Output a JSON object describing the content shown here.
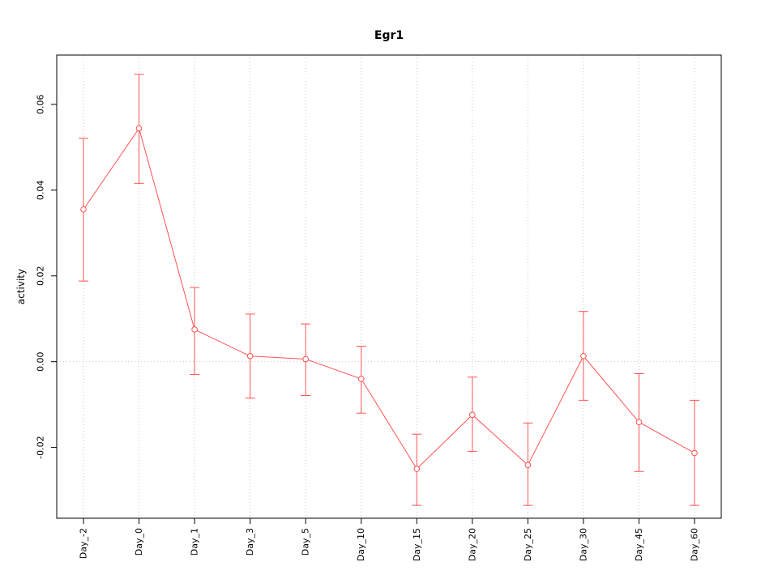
{
  "chart_data": {
    "type": "line",
    "title": "Egr1",
    "xlabel": "",
    "ylabel": "activity",
    "categories": [
      "Day_-2",
      "Day_0",
      "Day_1",
      "Day_3",
      "Day_5",
      "Day_10",
      "Day_15",
      "Day_20",
      "Day_25",
      "Day_30",
      "Day_45",
      "Day_60"
    ],
    "values": [
      0.0355,
      0.0544,
      0.0075,
      0.0013,
      0.0006,
      -0.004,
      -0.025,
      -0.0124,
      -0.0241,
      0.0013,
      -0.0141,
      -0.0213
    ],
    "error_high": [
      0.0521,
      0.067,
      0.0173,
      0.0111,
      0.0088,
      0.0036,
      -0.0169,
      -0.0036,
      -0.0143,
      0.0117,
      -0.0028,
      -0.009
    ],
    "error_low": [
      0.0188,
      0.0416,
      -0.003,
      -0.0085,
      -0.0079,
      -0.012,
      -0.0335,
      -0.0209,
      -0.0335,
      -0.009,
      -0.0256,
      -0.0335
    ],
    "ylim": [
      -0.0365,
      0.0715
    ],
    "yticks": [
      -0.02,
      0,
      0.02,
      0.04,
      0.06
    ],
    "grid": true,
    "series_color": "#ff5252",
    "grid_color": "#c8c8c8",
    "axis_color": "#000000"
  }
}
